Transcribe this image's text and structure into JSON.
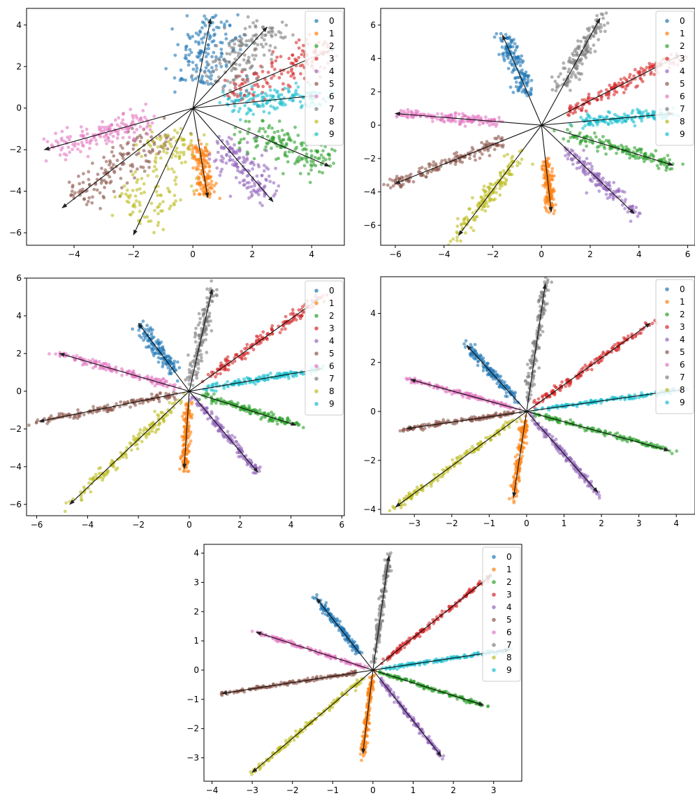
{
  "legend_labels": [
    "0",
    "1",
    "2",
    "3",
    "4",
    "5",
    "6",
    "7",
    "8",
    "9"
  ],
  "colors": [
    "#1f77b4",
    "#ff7f0e",
    "#2ca02c",
    "#d62728",
    "#9467bd",
    "#8c564b",
    "#e377c2",
    "#7f7f7f",
    "#bcbd22",
    "#17becf"
  ],
  "chart_data": [
    {
      "type": "scatter",
      "title": "",
      "xlabel": "",
      "ylabel": "",
      "xlim": [
        -5.6,
        5.1
      ],
      "ylim": [
        -6.6,
        4.8
      ],
      "xticks": [
        -4,
        -2,
        0,
        2,
        4
      ],
      "yticks": [
        -6,
        -4,
        -2,
        0,
        2,
        4
      ],
      "legend": "top-right",
      "grid": false,
      "arrows": [
        [
          0.6,
          4.3
        ],
        [
          0.5,
          -4.3
        ],
        [
          4.6,
          -2.8
        ],
        [
          4.8,
          2.9
        ],
        [
          2.7,
          -4.5
        ],
        [
          -4.4,
          -4.8
        ],
        [
          -5.0,
          -2.0
        ],
        [
          2.5,
          3.9
        ],
        [
          -2.0,
          -6.1
        ],
        [
          4.1,
          0.6
        ]
      ],
      "clusters": [
        {
          "series": "0",
          "start": 0.28,
          "end": 1.0,
          "spread_parallel": 0.9,
          "spread_perp": 0.9
        },
        {
          "series": "1",
          "start": 0.42,
          "end": 0.98,
          "spread_parallel": 0.5,
          "spread_perp": 0.25
        },
        {
          "series": "2",
          "start": 0.35,
          "end": 0.95,
          "spread_parallel": 1.0,
          "spread_perp": 0.8
        },
        {
          "series": "3",
          "start": 0.25,
          "end": 1.0,
          "spread_parallel": 1.0,
          "spread_perp": 0.7
        },
        {
          "series": "4",
          "start": 0.4,
          "end": 0.92,
          "spread_parallel": 0.6,
          "spread_perp": 0.55
        },
        {
          "series": "5",
          "start": 0.25,
          "end": 0.88,
          "spread_parallel": 0.9,
          "spread_perp": 0.7
        },
        {
          "series": "6",
          "start": 0.28,
          "end": 0.95,
          "spread_parallel": 0.8,
          "spread_perp": 0.5
        },
        {
          "series": "7",
          "start": 0.3,
          "end": 1.0,
          "spread_parallel": 0.8,
          "spread_perp": 0.75
        },
        {
          "series": "8",
          "start": 0.2,
          "end": 0.9,
          "spread_parallel": 1.0,
          "spread_perp": 0.85
        },
        {
          "series": "9",
          "start": 0.3,
          "end": 1.1,
          "spread_parallel": 0.9,
          "spread_perp": 0.55
        }
      ]
    },
    {
      "type": "scatter",
      "title": "",
      "xlabel": "",
      "ylabel": "",
      "xlim": [
        -6.6,
        6.3
      ],
      "ylim": [
        -7.2,
        7.0
      ],
      "xticks": [
        -6,
        -4,
        -2,
        0,
        2,
        4,
        6
      ],
      "yticks": [
        -6,
        -4,
        -2,
        0,
        2,
        4,
        6
      ],
      "legend": "top-right",
      "grid": false,
      "arrows": [
        [
          -1.6,
          5.4
        ],
        [
          0.4,
          -5.2
        ],
        [
          5.4,
          -2.4
        ],
        [
          5.7,
          4.2
        ],
        [
          3.8,
          -5.3
        ],
        [
          -6.0,
          -3.5
        ],
        [
          -6.0,
          0.7
        ],
        [
          2.4,
          6.4
        ],
        [
          -3.4,
          -6.6
        ],
        [
          5.4,
          0.7
        ]
      ],
      "clusters": [
        {
          "series": "0",
          "start": 0.35,
          "end": 1.0,
          "spread_parallel": 0.5,
          "spread_perp": 0.35
        },
        {
          "series": "1",
          "start": 0.4,
          "end": 0.95,
          "spread_parallel": 0.4,
          "spread_perp": 0.15
        },
        {
          "series": "2",
          "start": 0.2,
          "end": 1.0,
          "spread_parallel": 0.5,
          "spread_perp": 0.3
        },
        {
          "series": "3",
          "start": 0.2,
          "end": 1.0,
          "spread_parallel": 0.5,
          "spread_perp": 0.3
        },
        {
          "series": "4",
          "start": 0.3,
          "end": 1.0,
          "spread_parallel": 0.4,
          "spread_perp": 0.3
        },
        {
          "series": "5",
          "start": 0.25,
          "end": 1.0,
          "spread_parallel": 0.5,
          "spread_perp": 0.3
        },
        {
          "series": "6",
          "start": 0.3,
          "end": 1.0,
          "spread_parallel": 0.5,
          "spread_perp": 0.25
        },
        {
          "series": "7",
          "start": 0.35,
          "end": 1.0,
          "spread_parallel": 0.5,
          "spread_perp": 0.35
        },
        {
          "series": "8",
          "start": 0.3,
          "end": 1.0,
          "spread_parallel": 0.5,
          "spread_perp": 0.35
        },
        {
          "series": "9",
          "start": 0.3,
          "end": 1.0,
          "spread_parallel": 0.5,
          "spread_perp": 0.3
        }
      ]
    },
    {
      "type": "scatter",
      "title": "",
      "xlabel": "",
      "ylabel": "",
      "xlim": [
        -6.4,
        6.1
      ],
      "ylim": [
        -6.6,
        6.0
      ],
      "xticks": [
        -6,
        -4,
        -2,
        0,
        2,
        4,
        6
      ],
      "yticks": [
        -6,
        -4,
        -2,
        0,
        2,
        4,
        6
      ],
      "legend": "top-right",
      "grid": false,
      "arrows": [
        [
          -2.0,
          3.6
        ],
        [
          -0.2,
          -4.1
        ],
        [
          4.2,
          -1.8
        ],
        [
          5.1,
          4.9
        ],
        [
          2.7,
          -4.3
        ],
        [
          -5.9,
          -1.6
        ],
        [
          -5.1,
          2.0
        ],
        [
          0.9,
          5.4
        ],
        [
          -4.7,
          -6.0
        ],
        [
          5.2,
          1.2
        ]
      ],
      "clusters": [
        {
          "series": "0",
          "start": 0.3,
          "end": 1.0,
          "spread_parallel": 0.4,
          "spread_perp": 0.25
        },
        {
          "series": "1",
          "start": 0.15,
          "end": 1.0,
          "spread_parallel": 0.3,
          "spread_perp": 0.12
        },
        {
          "series": "2",
          "start": 0.15,
          "end": 1.0,
          "spread_parallel": 0.4,
          "spread_perp": 0.15
        },
        {
          "series": "3",
          "start": 0.15,
          "end": 1.0,
          "spread_parallel": 0.4,
          "spread_perp": 0.2
        },
        {
          "series": "4",
          "start": 0.1,
          "end": 1.0,
          "spread_parallel": 0.3,
          "spread_perp": 0.15
        },
        {
          "series": "5",
          "start": 0.1,
          "end": 1.0,
          "spread_parallel": 0.4,
          "spread_perp": 0.15
        },
        {
          "series": "6",
          "start": 0.15,
          "end": 1.0,
          "spread_parallel": 0.4,
          "spread_perp": 0.15
        },
        {
          "series": "7",
          "start": 0.1,
          "end": 1.0,
          "spread_parallel": 0.4,
          "spread_perp": 0.2
        },
        {
          "series": "8",
          "start": 0.1,
          "end": 1.0,
          "spread_parallel": 0.4,
          "spread_perp": 0.2
        },
        {
          "series": "9",
          "start": 0.12,
          "end": 1.0,
          "spread_parallel": 0.4,
          "spread_perp": 0.15
        }
      ]
    },
    {
      "type": "scatter",
      "title": "",
      "xlabel": "",
      "ylabel": "",
      "xlim": [
        -3.9,
        4.5
      ],
      "ylim": [
        -4.2,
        5.5
      ],
      "xticks": [
        -3,
        -2,
        -1,
        0,
        1,
        2,
        3,
        4
      ],
      "yticks": [
        -4,
        -2,
        0,
        2,
        4
      ],
      "legend": "top-right",
      "grid": false,
      "arrows": [
        [
          -1.6,
          2.7
        ],
        [
          -0.35,
          -3.5
        ],
        [
          3.8,
          -1.6
        ],
        [
          3.3,
          3.6
        ],
        [
          1.9,
          -3.3
        ],
        [
          -3.2,
          -0.7
        ],
        [
          -3.1,
          1.3
        ],
        [
          0.5,
          5.2
        ],
        [
          -3.5,
          -3.9
        ],
        [
          4.2,
          0.9
        ]
      ],
      "clusters": [
        {
          "series": "0",
          "start": 0.2,
          "end": 1.0,
          "spread_parallel": 0.3,
          "spread_perp": 0.12
        },
        {
          "series": "1",
          "start": 0.1,
          "end": 1.0,
          "spread_parallel": 0.3,
          "spread_perp": 0.08
        },
        {
          "series": "2",
          "start": 0.1,
          "end": 1.0,
          "spread_parallel": 0.3,
          "spread_perp": 0.08
        },
        {
          "series": "3",
          "start": 0.1,
          "end": 1.0,
          "spread_parallel": 0.3,
          "spread_perp": 0.1
        },
        {
          "series": "4",
          "start": 0.1,
          "end": 1.0,
          "spread_parallel": 0.3,
          "spread_perp": 0.08
        },
        {
          "series": "5",
          "start": 0.1,
          "end": 1.0,
          "spread_parallel": 0.3,
          "spread_perp": 0.08
        },
        {
          "series": "6",
          "start": 0.1,
          "end": 1.0,
          "spread_parallel": 0.3,
          "spread_perp": 0.08
        },
        {
          "series": "7",
          "start": 0.1,
          "end": 1.0,
          "spread_parallel": 0.3,
          "spread_perp": 0.1
        },
        {
          "series": "8",
          "start": 0.1,
          "end": 1.0,
          "spread_parallel": 0.3,
          "spread_perp": 0.1
        },
        {
          "series": "9",
          "start": 0.1,
          "end": 1.0,
          "spread_parallel": 0.3,
          "spread_perp": 0.08
        }
      ]
    },
    {
      "type": "scatter",
      "title": "",
      "xlabel": "",
      "ylabel": "",
      "xlim": [
        -4.2,
        3.7
      ],
      "ylim": [
        -3.8,
        4.3
      ],
      "xticks": [
        -4,
        -3,
        -2,
        -1,
        0,
        1,
        2,
        3
      ],
      "yticks": [
        -3,
        -2,
        -1,
        0,
        1,
        2,
        3,
        4
      ],
      "legend": "top-right",
      "grid": false,
      "arrows": [
        [
          -1.4,
          2.45
        ],
        [
          -0.25,
          -2.85
        ],
        [
          2.75,
          -1.2
        ],
        [
          2.95,
          3.25
        ],
        [
          1.7,
          -2.95
        ],
        [
          -3.75,
          -0.8
        ],
        [
          -2.9,
          1.3
        ],
        [
          0.4,
          3.9
        ],
        [
          -3.0,
          -3.5
        ],
        [
          3.4,
          0.7
        ]
      ],
      "clusters": [
        {
          "series": "0",
          "start": 0.25,
          "end": 1.0,
          "spread_parallel": 0.3,
          "spread_perp": 0.07
        },
        {
          "series": "1",
          "start": 0.1,
          "end": 1.0,
          "spread_parallel": 0.3,
          "spread_perp": 0.05
        },
        {
          "series": "2",
          "start": 0.1,
          "end": 1.0,
          "spread_parallel": 0.3,
          "spread_perp": 0.05
        },
        {
          "series": "3",
          "start": 0.1,
          "end": 1.0,
          "spread_parallel": 0.3,
          "spread_perp": 0.06
        },
        {
          "series": "4",
          "start": 0.1,
          "end": 1.0,
          "spread_parallel": 0.3,
          "spread_perp": 0.05
        },
        {
          "series": "5",
          "start": 0.1,
          "end": 1.0,
          "spread_parallel": 0.3,
          "spread_perp": 0.05
        },
        {
          "series": "6",
          "start": 0.1,
          "end": 1.0,
          "spread_parallel": 0.3,
          "spread_perp": 0.05
        },
        {
          "series": "7",
          "start": 0.1,
          "end": 1.0,
          "spread_parallel": 0.3,
          "spread_perp": 0.06
        },
        {
          "series": "8",
          "start": 0.1,
          "end": 1.0,
          "spread_parallel": 0.3,
          "spread_perp": 0.06
        },
        {
          "series": "9",
          "start": 0.1,
          "end": 1.0,
          "spread_parallel": 0.3,
          "spread_perp": 0.05
        }
      ]
    }
  ]
}
